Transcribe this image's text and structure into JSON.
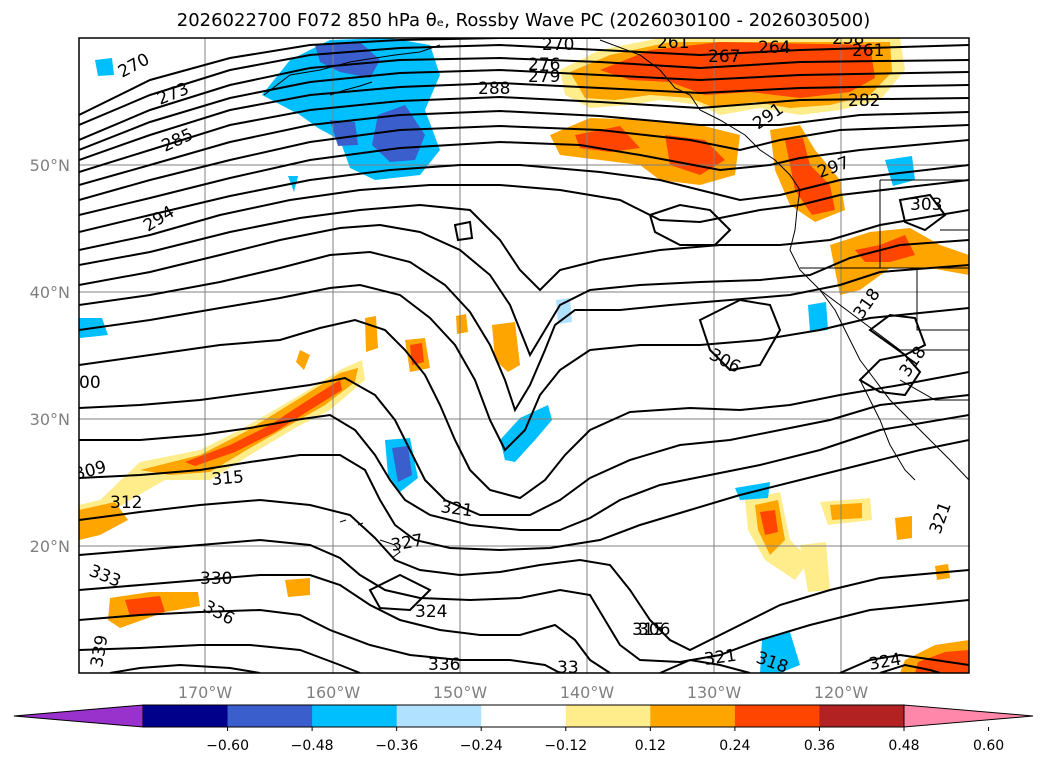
{
  "title": {
    "text": "2026022700 F072 850 hPa θₑ, Rossby Wave PC (2026030100 - 2026030500)"
  },
  "axes": {
    "x_ticks": [
      "170°W",
      "160°W",
      "150°W",
      "140°W",
      "130°W",
      "120°W"
    ],
    "y_ticks": [
      "50°N",
      "40°N",
      "30°N",
      "20°N"
    ]
  },
  "contour_labels": [
    "270",
    "273",
    "276",
    "279",
    "288",
    "285",
    "294",
    "261",
    "264",
    "267",
    "270",
    "258",
    "261",
    "282",
    "291",
    "297",
    "303",
    "306",
    "306",
    "309",
    "312",
    "315",
    "318",
    "318",
    "321",
    "321",
    "321",
    "324",
    "324",
    "327",
    "330",
    "333",
    "336",
    "336",
    "339",
    "315",
    "318",
    "00",
    "33"
  ],
  "colorbar": {
    "ticks": [
      "−0.60",
      "−0.48",
      "−0.36",
      "−0.24",
      "−0.12",
      "0.12",
      "0.24",
      "0.36",
      "0.48",
      "0.60"
    ],
    "colors": [
      "#9932CC",
      "#00008B",
      "#3A5FCD",
      "#00BFFF",
      "#B0E2FF",
      "#FFFFFF",
      "#FFEC8B",
      "#FFA500",
      "#FF4500",
      "#B22222",
      "#FF88AA"
    ]
  }
}
